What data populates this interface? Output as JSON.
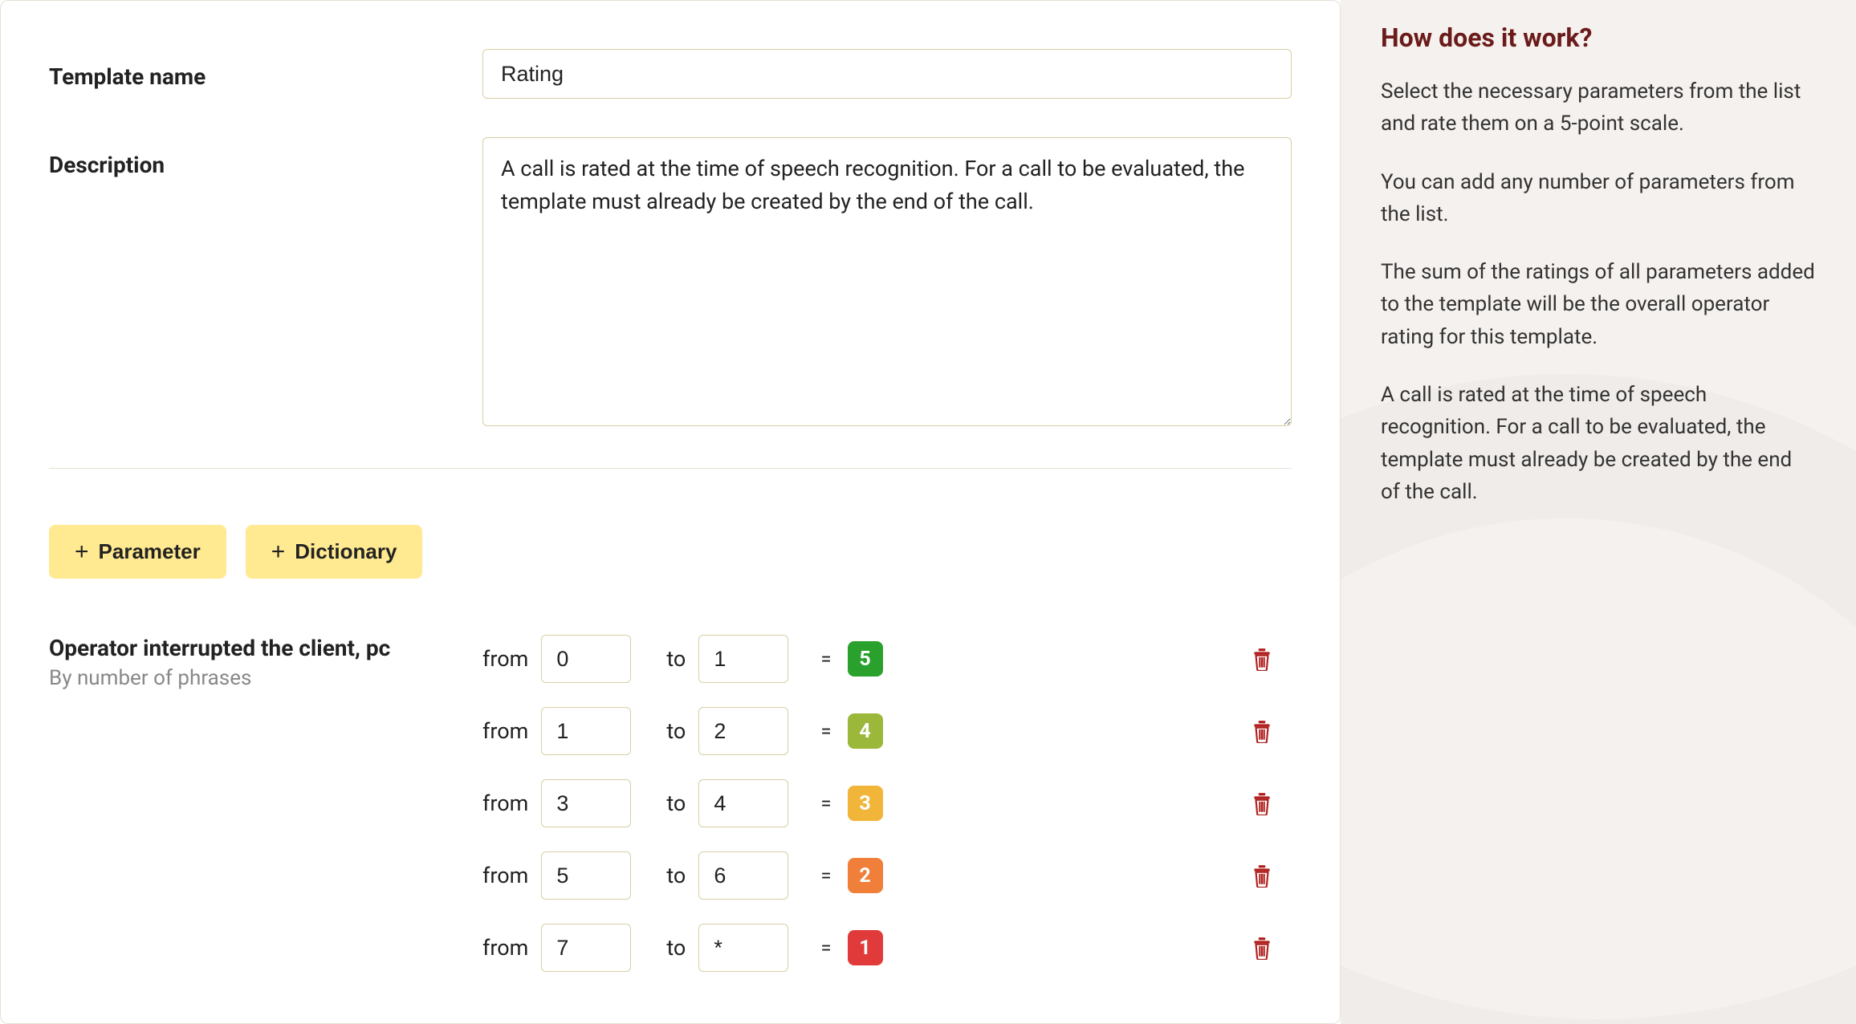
{
  "form": {
    "templateNameLabel": "Template name",
    "templateNameValue": "Rating",
    "descriptionLabel": "Description",
    "descriptionValue": "A call is rated at the time of speech recognition. For a call to be evaluated, the template must already be created by the end of the call."
  },
  "buttons": {
    "parameter": "Parameter",
    "dictionary": "Dictionary"
  },
  "parameter": {
    "title": "Operator interrupted the client, pc",
    "subtitle": "By number of phrases",
    "fromLabel": "from",
    "toLabel": "to",
    "equals": "=",
    "rules": [
      {
        "from": "0",
        "to": "1",
        "score": "5",
        "scoreColor": "#2aa12c"
      },
      {
        "from": "1",
        "to": "2",
        "score": "4",
        "scoreColor": "#9bb83a"
      },
      {
        "from": "3",
        "to": "4",
        "score": "3",
        "scoreColor": "#f1b53a"
      },
      {
        "from": "5",
        "to": "6",
        "score": "2",
        "scoreColor": "#f07f3a"
      },
      {
        "from": "7",
        "to": "*",
        "score": "1",
        "scoreColor": "#e13a3a"
      }
    ],
    "trashColor": "#b0201e"
  },
  "help": {
    "title": "How does it work?",
    "paragraphs": [
      "Select the necessary parameters from the list and rate them on a 5-point scale.",
      "You can add any number of parameters from the list.",
      "The sum of the ratings of all parameters added to the template will be the overall operator rating for this template.",
      "A call is rated at the time of speech recognition. For a call to be evaluated, the template must already be created by the end of the call."
    ]
  }
}
